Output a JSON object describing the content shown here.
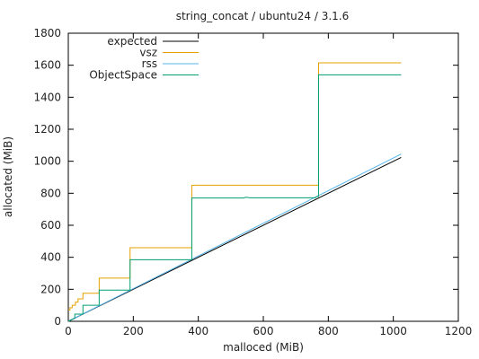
{
  "chart_data": {
    "type": "line",
    "title": "string_concat / ubuntu24 / 3.1.6",
    "xlabel": "malloced (MiB)",
    "ylabel": "allocated (MiB)",
    "xlim": [
      0,
      1200
    ],
    "ylim": [
      0,
      1800
    ],
    "x_ticks": [
      0,
      200,
      400,
      600,
      800,
      1000,
      1200
    ],
    "y_ticks": [
      0,
      200,
      400,
      600,
      800,
      1000,
      1200,
      1400,
      1600,
      1800
    ],
    "grid": false,
    "legend_position": "top-left",
    "series": [
      {
        "name": "expected",
        "color": "#000000",
        "points": [
          [
            0,
            0
          ],
          [
            1024,
            1024
          ]
        ]
      },
      {
        "name": "vsz",
        "color": "#e6a000",
        "points": [
          [
            0,
            70
          ],
          [
            5,
            70
          ],
          [
            5,
            85
          ],
          [
            12,
            85
          ],
          [
            12,
            100
          ],
          [
            22,
            100
          ],
          [
            22,
            120
          ],
          [
            30,
            120
          ],
          [
            30,
            140
          ],
          [
            45,
            140
          ],
          [
            45,
            175
          ],
          [
            95,
            175
          ],
          [
            95,
            270
          ],
          [
            190,
            270
          ],
          [
            190,
            460
          ],
          [
            380,
            460
          ],
          [
            380,
            850
          ],
          [
            770,
            850
          ],
          [
            770,
            1615
          ],
          [
            1024,
            1615
          ]
        ]
      },
      {
        "name": "rss",
        "color": "#56b4e9",
        "points": [
          [
            0,
            0
          ],
          [
            1024,
            1045
          ]
        ]
      },
      {
        "name": "ObjectSpace",
        "color": "#009e73",
        "points": [
          [
            0,
            0
          ],
          [
            20,
            20
          ],
          [
            20,
            45
          ],
          [
            45,
            45
          ],
          [
            45,
            100
          ],
          [
            95,
            100
          ],
          [
            95,
            195
          ],
          [
            190,
            195
          ],
          [
            190,
            385
          ],
          [
            380,
            385
          ],
          [
            380,
            770
          ],
          [
            540,
            770
          ],
          [
            545,
            775
          ],
          [
            560,
            772
          ],
          [
            760,
            772
          ],
          [
            765,
            780
          ],
          [
            770,
            780
          ],
          [
            770,
            1540
          ],
          [
            1024,
            1540
          ]
        ]
      }
    ]
  }
}
